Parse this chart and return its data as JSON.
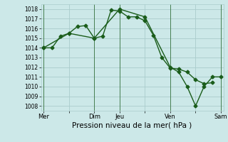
{
  "xlabel": "Pression niveau de la mer( hPa )",
  "bg_color": "#cce8e8",
  "grid_color": "#aacccc",
  "line_color": "#1a5c1a",
  "ylim": [
    1007.5,
    1018.5
  ],
  "yticks": [
    1008,
    1009,
    1010,
    1011,
    1012,
    1013,
    1014,
    1015,
    1016,
    1017,
    1018
  ],
  "xtick_labels": [
    "Mer",
    "",
    "Dim",
    "Jeu",
    "",
    "Ven",
    "",
    "Sam"
  ],
  "xtick_positions": [
    0,
    3,
    6,
    9,
    12,
    15,
    18,
    21
  ],
  "line1_x": [
    0,
    1,
    2,
    3,
    4,
    5,
    6,
    7,
    8,
    9,
    10,
    11,
    12,
    13,
    14,
    15,
    16,
    17,
    18,
    19,
    20
  ],
  "line1_y": [
    1014.0,
    1014.0,
    1015.2,
    1015.5,
    1016.2,
    1016.3,
    1015.0,
    1015.2,
    1017.9,
    1017.8,
    1017.2,
    1017.2,
    1016.8,
    1015.3,
    1013.0,
    1011.9,
    1011.8,
    1011.5,
    1010.7,
    1010.3,
    1010.4
  ],
  "line2_x": [
    0,
    3,
    6,
    9,
    12,
    15,
    16,
    17,
    18,
    19,
    20,
    21
  ],
  "line2_y": [
    1014.0,
    1015.5,
    1015.0,
    1018.0,
    1017.2,
    1012.0,
    1011.5,
    1010.0,
    1008.0,
    1010.0,
    1011.0,
    1011.0
  ],
  "vlines_x": [
    0,
    6,
    9,
    15,
    21
  ],
  "xlim": [
    -0.3,
    21.3
  ],
  "marker_size": 2.5,
  "linewidth": 1.0,
  "ytick_fontsize": 5.5,
  "xtick_fontsize": 6.0,
  "xlabel_fontsize": 7.5
}
